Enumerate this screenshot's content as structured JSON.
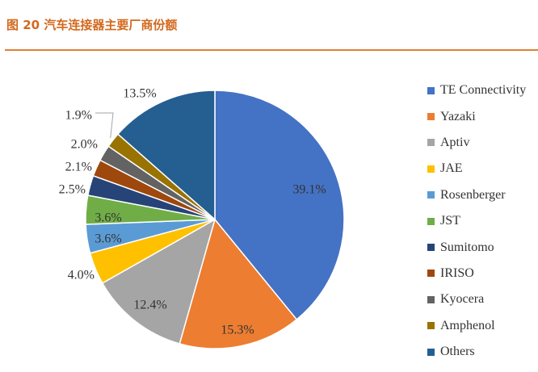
{
  "figure": {
    "title": "图 20 汽车连接器主要厂商份额"
  },
  "chart_data": {
    "type": "pie",
    "title": "",
    "start_angle_deg": 0,
    "direction": "clockwise",
    "legend_position": "right",
    "slices": [
      {
        "name": "TE Connectivity",
        "value": 39.1,
        "label": "39.1%",
        "color": "#4472c4"
      },
      {
        "name": "Yazaki",
        "value": 15.3,
        "label": "15.3%",
        "color": "#ed7d31"
      },
      {
        "name": "Aptiv",
        "value": 12.4,
        "label": "12.4%",
        "color": "#a5a5a5"
      },
      {
        "name": "JAE",
        "value": 4.0,
        "label": "4.0%",
        "color": "#ffc000"
      },
      {
        "name": "Rosenberger",
        "value": 3.6,
        "label": "3.6%",
        "color": "#5b9bd5"
      },
      {
        "name": "JST",
        "value": 3.6,
        "label": "3.6%",
        "color": "#70ad47"
      },
      {
        "name": "Sumitomo",
        "value": 2.5,
        "label": "2.5%",
        "color": "#264478"
      },
      {
        "name": "IRISO",
        "value": 2.1,
        "label": "2.1%",
        "color": "#9e480e"
      },
      {
        "name": "Kyocera",
        "value": 2.0,
        "label": "2.0%",
        "color": "#636363"
      },
      {
        "name": "Amphenol",
        "value": 1.9,
        "label": "1.9%",
        "color": "#997300"
      },
      {
        "name": "Others",
        "value": 13.5,
        "label": "13.5%",
        "color": "#255e91"
      }
    ]
  }
}
